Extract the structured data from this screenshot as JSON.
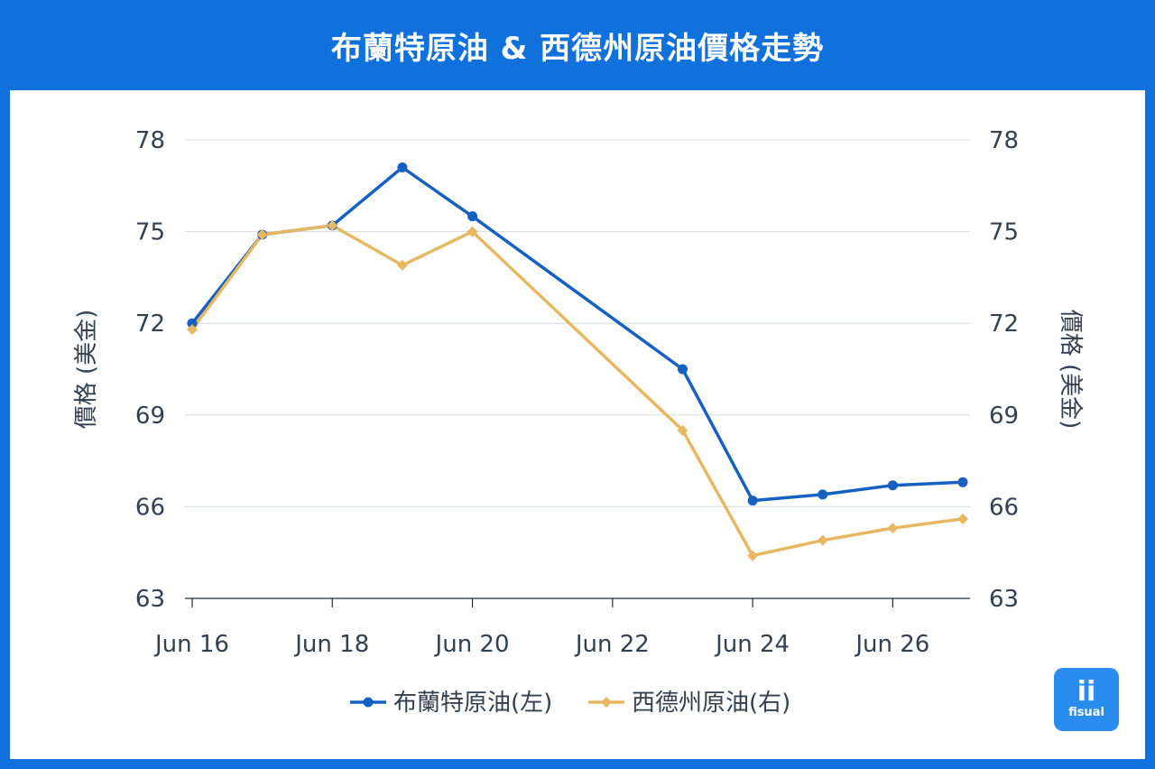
{
  "header": {
    "title": "布蘭特原油 & 西德州原油價格走勢"
  },
  "brand": {
    "mark": "ii",
    "name": "fisual",
    "color": "#2b8cf0"
  },
  "chart_data": {
    "type": "line",
    "title": "布蘭特原油 & 西德州原油價格走勢",
    "x_axis": {
      "type": "date",
      "range": [
        "2024-06-16",
        "2024-06-27"
      ],
      "ticks": [
        {
          "date": "2024-06-16",
          "label": "Jun 16"
        },
        {
          "date": "2024-06-18",
          "label": "Jun 18"
        },
        {
          "date": "2024-06-20",
          "label": "Jun 20"
        },
        {
          "date": "2024-06-22",
          "label": "Jun 22"
        },
        {
          "date": "2024-06-24",
          "label": "Jun 24"
        },
        {
          "date": "2024-06-26",
          "label": "Jun 26"
        }
      ]
    },
    "y_left": {
      "label": "價格 (美金)",
      "range": [
        63,
        78
      ],
      "ticks": [
        63,
        66,
        69,
        72,
        75,
        78
      ]
    },
    "y_right": {
      "label": "價格 (美金)",
      "range": [
        63,
        78
      ],
      "ticks": [
        63,
        66,
        69,
        72,
        75,
        78
      ]
    },
    "grid": true,
    "legend_position": "bottom",
    "series": [
      {
        "name": "布蘭特原油(左)",
        "axis": "left",
        "color": "#1560c0",
        "marker": "circle",
        "points": [
          {
            "x": "2024-06-16",
            "y": 72.0
          },
          {
            "x": "2024-06-17",
            "y": 74.9
          },
          {
            "x": "2024-06-18",
            "y": 75.2
          },
          {
            "x": "2024-06-19",
            "y": 77.1
          },
          {
            "x": "2024-06-20",
            "y": 75.5
          },
          {
            "x": "2024-06-23",
            "y": 70.5
          },
          {
            "x": "2024-06-24",
            "y": 66.2
          },
          {
            "x": "2024-06-25",
            "y": 66.4
          },
          {
            "x": "2024-06-26",
            "y": 66.7
          },
          {
            "x": "2024-06-27",
            "y": 66.8
          }
        ]
      },
      {
        "name": "西德州原油(右)",
        "axis": "right",
        "color": "#e6b862",
        "marker": "diamond",
        "points": [
          {
            "x": "2024-06-16",
            "y": 71.8
          },
          {
            "x": "2024-06-17",
            "y": 74.9
          },
          {
            "x": "2024-06-18",
            "y": 75.2
          },
          {
            "x": "2024-06-19",
            "y": 73.9
          },
          {
            "x": "2024-06-20",
            "y": 75.0
          },
          {
            "x": "2024-06-23",
            "y": 68.5
          },
          {
            "x": "2024-06-24",
            "y": 64.4
          },
          {
            "x": "2024-06-25",
            "y": 64.9
          },
          {
            "x": "2024-06-26",
            "y": 65.3
          },
          {
            "x": "2024-06-27",
            "y": 65.6
          }
        ]
      }
    ]
  }
}
